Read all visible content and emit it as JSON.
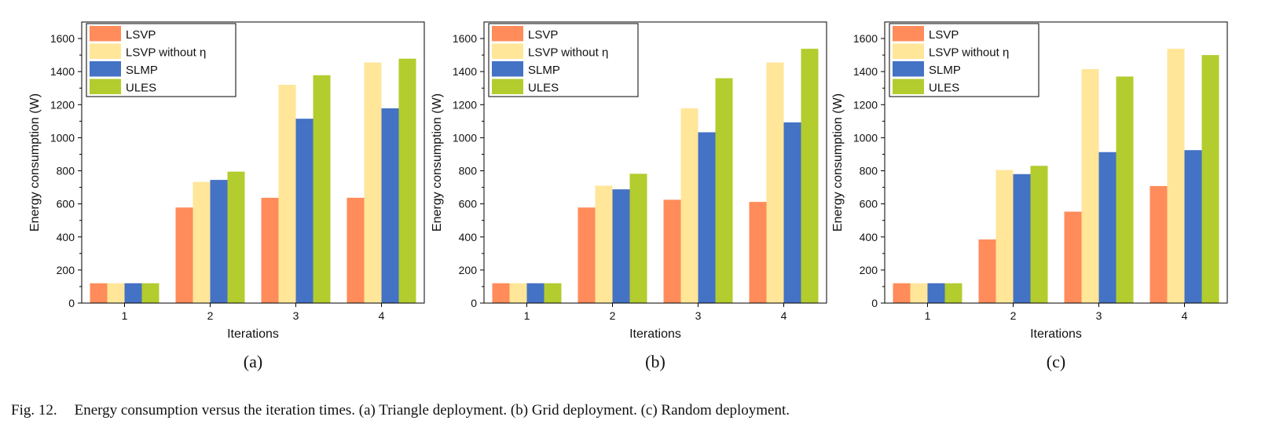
{
  "figure": {
    "caption_label": "Fig. 12.",
    "caption_text": "Energy consumption versus the iteration times. (a) Triangle deployment. (b) Grid deployment. (c) Random deployment."
  },
  "series_colors": {
    "LSVP": "#FF8C5A",
    "LSVP without η": "#FFE699",
    "SLMP": "#4472C4",
    "ULES": "#B3CC2E"
  },
  "chart_data": [
    {
      "panel": "(a)",
      "type": "bar",
      "xlabel": "Iterations",
      "ylabel": "Energy consumption (W)",
      "categories": [
        "1",
        "2",
        "3",
        "4"
      ],
      "ylim": [
        0,
        1700
      ],
      "yticks": [
        0,
        200,
        400,
        600,
        800,
        1000,
        1200,
        1400,
        1600
      ],
      "legend_position": "top-left",
      "series": [
        {
          "name": "LSVP",
          "values": [
            120,
            578,
            637,
            637
          ]
        },
        {
          "name": "LSVP without η",
          "values": [
            120,
            733,
            1320,
            1455
          ]
        },
        {
          "name": "SLMP",
          "values": [
            120,
            745,
            1115,
            1178
          ]
        },
        {
          "name": "ULES",
          "values": [
            120,
            795,
            1378,
            1478
          ]
        }
      ]
    },
    {
      "panel": "(b)",
      "type": "bar",
      "xlabel": "Iterations",
      "ylabel": "Energy consumption (W)",
      "categories": [
        "1",
        "2",
        "3",
        "4"
      ],
      "ylim": [
        0,
        1700
      ],
      "yticks": [
        0,
        200,
        400,
        600,
        800,
        1000,
        1200,
        1400,
        1600
      ],
      "legend_position": "top-left",
      "series": [
        {
          "name": "LSVP",
          "values": [
            120,
            578,
            625,
            612
          ]
        },
        {
          "name": "LSVP without η",
          "values": [
            120,
            710,
            1178,
            1455
          ]
        },
        {
          "name": "SLMP",
          "values": [
            120,
            688,
            1033,
            1093
          ]
        },
        {
          "name": "ULES",
          "values": [
            120,
            782,
            1360,
            1538
          ]
        }
      ]
    },
    {
      "panel": "(c)",
      "type": "bar",
      "xlabel": "Iterations",
      "ylabel": "Energy consumption (W)",
      "categories": [
        "1",
        "2",
        "3",
        "4"
      ],
      "ylim": [
        0,
        1700
      ],
      "yticks": [
        0,
        200,
        400,
        600,
        800,
        1000,
        1200,
        1400,
        1600
      ],
      "legend_position": "top-left",
      "series": [
        {
          "name": "LSVP",
          "values": [
            120,
            385,
            553,
            708
          ]
        },
        {
          "name": "LSVP without η",
          "values": [
            120,
            805,
            1415,
            1538
          ]
        },
        {
          "name": "SLMP",
          "values": [
            120,
            780,
            913,
            925
          ]
        },
        {
          "name": "ULES",
          "values": [
            120,
            830,
            1370,
            1500
          ]
        }
      ]
    }
  ]
}
